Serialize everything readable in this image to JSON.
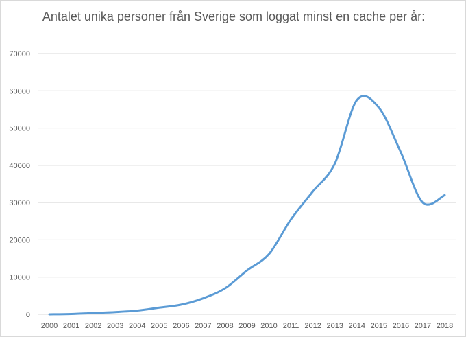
{
  "chart_data": {
    "type": "line",
    "title": "Antalet unika personer från Sverige som loggat minst en cache per år:",
    "xlabel": "",
    "ylabel": "",
    "x": [
      "2000",
      "2001",
      "2002",
      "2003",
      "2004",
      "2005",
      "2006",
      "2007",
      "2008",
      "2009",
      "2010",
      "2011",
      "2012",
      "2013",
      "2014",
      "2015",
      "2016",
      "2017",
      "2018"
    ],
    "series": [
      {
        "values": [
          0,
          100,
          350,
          600,
          1000,
          1800,
          2600,
          4300,
          7000,
          11800,
          16200,
          25500,
          33000,
          40500,
          57500,
          55500,
          43500,
          30000,
          32000
        ]
      }
    ],
    "ylim": [
      0,
      70000
    ],
    "yticks": [
      0,
      10000,
      20000,
      30000,
      40000,
      50000,
      60000,
      70000
    ],
    "yticks_labels": [
      "0",
      "10000",
      "20000",
      "30000",
      "40000",
      "50000",
      "60000",
      "70000"
    ],
    "grid": true,
    "legend": "none",
    "colors": {
      "line": "#5b9bd5",
      "grid": "#d9d9d9",
      "text": "#595959"
    }
  }
}
